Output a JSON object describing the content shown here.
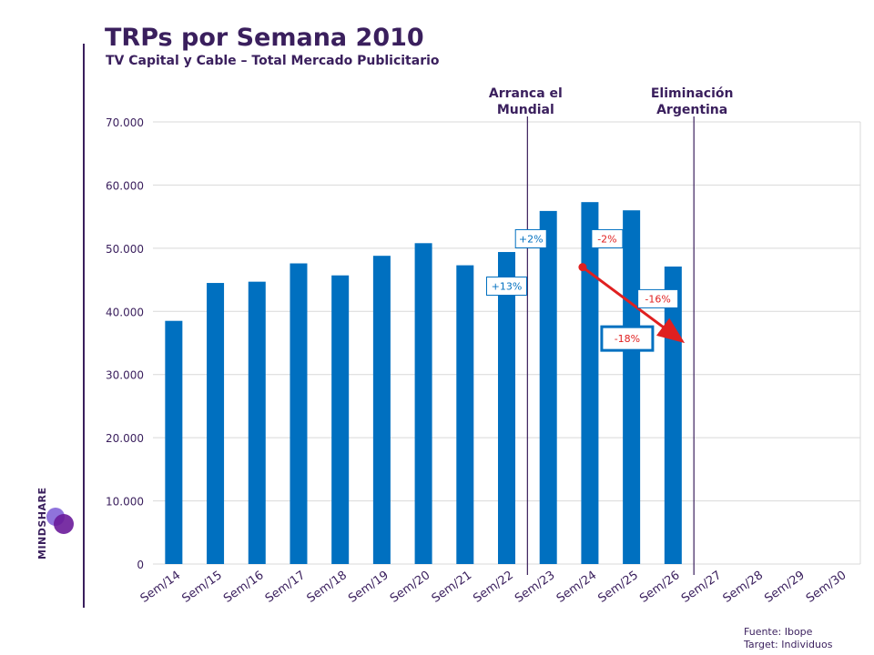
{
  "header": {
    "title": "TRPs por Semana 2010",
    "subtitle": "TV Capital y Cable – Total Mercado Publicitario"
  },
  "brand": {
    "name": "MINDSHARE"
  },
  "source": {
    "line1": "Fuente: Ibope",
    "line2": "Target: Individuos"
  },
  "chart_data": {
    "type": "bar",
    "categories": [
      "Sem/14",
      "Sem/15",
      "Sem/16",
      "Sem/17",
      "Sem/18",
      "Sem/19",
      "Sem/20",
      "Sem/21",
      "Sem/22",
      "Sem/23",
      "Sem/24",
      "Sem/25",
      "Sem/26",
      "Sem/27",
      "Sem/28",
      "Sem/29",
      "Sem/30"
    ],
    "values": [
      38500,
      44500,
      44700,
      47600,
      45700,
      48800,
      50800,
      47300,
      49400,
      55900,
      57300,
      56000,
      47100,
      null,
      null,
      null,
      null
    ],
    "ylim": [
      0,
      70000
    ],
    "yticks": [
      0,
      10000,
      20000,
      30000,
      40000,
      50000,
      60000,
      70000
    ],
    "ytick_labels": [
      "0",
      "10.000",
      "20.000",
      "30.000",
      "40.000",
      "50.000",
      "60.000",
      "70.000"
    ],
    "grid": true,
    "bar_color": "#0070c0",
    "event_lines": [
      {
        "label_line1": "Arranca el",
        "label_line2": "Mundial",
        "after_category": "Sem/22"
      },
      {
        "label_line1": "Eliminación",
        "label_line2": "Argentina",
        "after_category": "Sem/26"
      }
    ],
    "annotations": [
      {
        "text": "+13%",
        "category": "Sem/22",
        "level": 44000,
        "color": "#0070c0"
      },
      {
        "text": "+2%",
        "category": "Sem/23",
        "level": 51500,
        "color": "#0070c0"
      },
      {
        "text": "-2%",
        "category": "Sem/24",
        "level": 51500,
        "color": "#e02020"
      },
      {
        "text": "-16%",
        "category": "Sem/25",
        "level": 42000,
        "color": "#e02020"
      },
      {
        "text": "-18%",
        "category": "Sem/24",
        "level": 35700,
        "color": "#e02020"
      }
    ],
    "trend_arrow": {
      "from_category": "Sem/24",
      "from_value": 47000,
      "to_category": "Sem/26",
      "to_value": 35500,
      "color": "#e02020"
    }
  }
}
